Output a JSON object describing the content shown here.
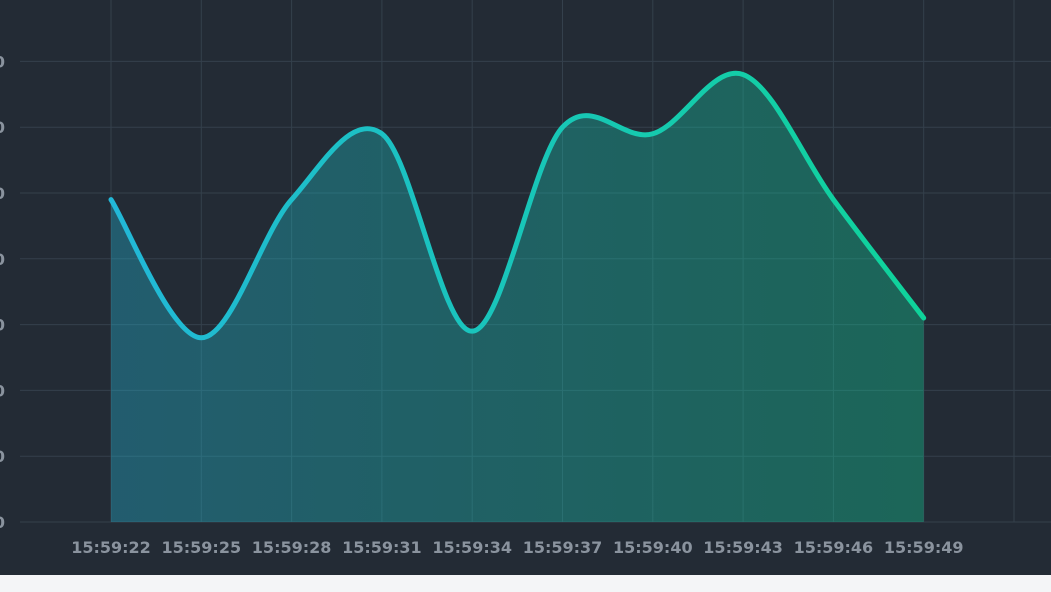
{
  "chart_data": {
    "type": "area",
    "title": "",
    "xlabel": "",
    "ylabel": "",
    "categories": [
      "15:59:22",
      "15:59:25",
      "15:59:28",
      "15:59:31",
      "15:59:34",
      "15:59:37",
      "15:59:40",
      "15:59:43",
      "15:59:46",
      "15:59:49"
    ],
    "y_tick_labels": [
      "0",
      "0",
      "0",
      "0",
      "0",
      "0",
      "0",
      "0"
    ],
    "ylim": [
      0,
      8
    ],
    "grid": true,
    "series": [
      {
        "values": [
          4.9,
          2.8,
          4.9,
          5.9,
          2.9,
          6.0,
          5.9,
          6.8,
          4.9,
          3.1
        ],
        "color_start": "#22b8d8",
        "color_end": "#0fd39a"
      }
    ],
    "background": "#232b35",
    "grid_color": "#34404c"
  }
}
